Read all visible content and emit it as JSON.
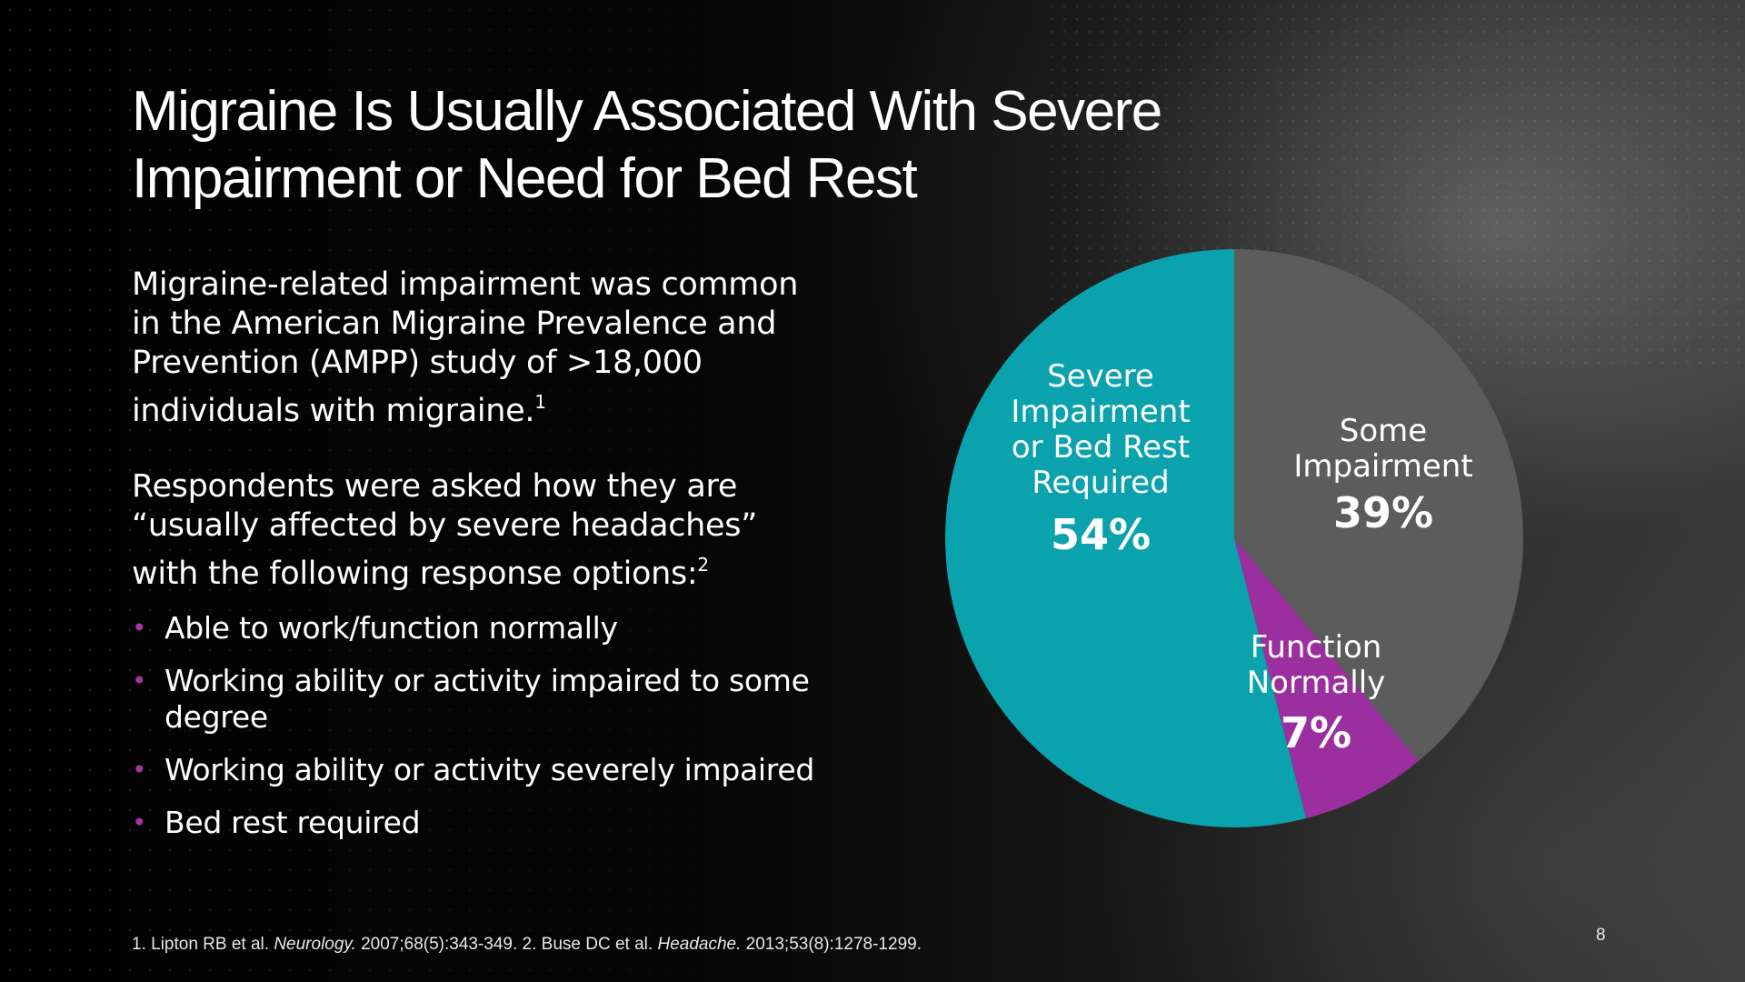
{
  "title": "Migraine Is Usually Associated With Severe Impairment or Need for Bed Rest",
  "intro": {
    "text": "Migraine-related impairment was common in the American Migraine Prevalence and Prevention (AMPP) study of >18,000 individuals with migraine.",
    "sup": "1"
  },
  "question": {
    "text": "Respondents were asked how they are “usually affected by severe headaches” with the following response options:",
    "sup": "2"
  },
  "options": [
    "Able to work/function normally",
    "Working ability or activity impaired to some degree",
    "Working ability or activity severely impaired",
    "Bed rest required"
  ],
  "footnote": {
    "ref1_authors": "1. Lipton RB et al. ",
    "ref1_journal": "Neurology.",
    "ref1_details": " 2007;68(5):343-349. 2. Buse DC et al. ",
    "ref2_journal": "Headache.",
    "ref2_details": " 2013;53(8):1278-1299."
  },
  "page_number": "8",
  "colors": {
    "severe": "#0aa2ad",
    "some": "#5c5c5c",
    "normal": "#9b2fa0",
    "bullet": "#a3359e"
  },
  "chart_data": {
    "type": "pie",
    "slices": [
      {
        "label_lines": [
          "Some",
          "Impairment"
        ],
        "value": 39,
        "display": "39%",
        "color": "#5c5c5c"
      },
      {
        "label_lines": [
          "Function",
          "Normally"
        ],
        "value": 7,
        "display": "7%",
        "color": "#9b2fa0"
      },
      {
        "label_lines": [
          "Severe",
          "Impairment",
          "or Bed Rest",
          "Required"
        ],
        "value": 54,
        "display": "54%",
        "color": "#0aa2ad"
      }
    ],
    "start": "12 o'clock",
    "direction": "clockwise"
  }
}
